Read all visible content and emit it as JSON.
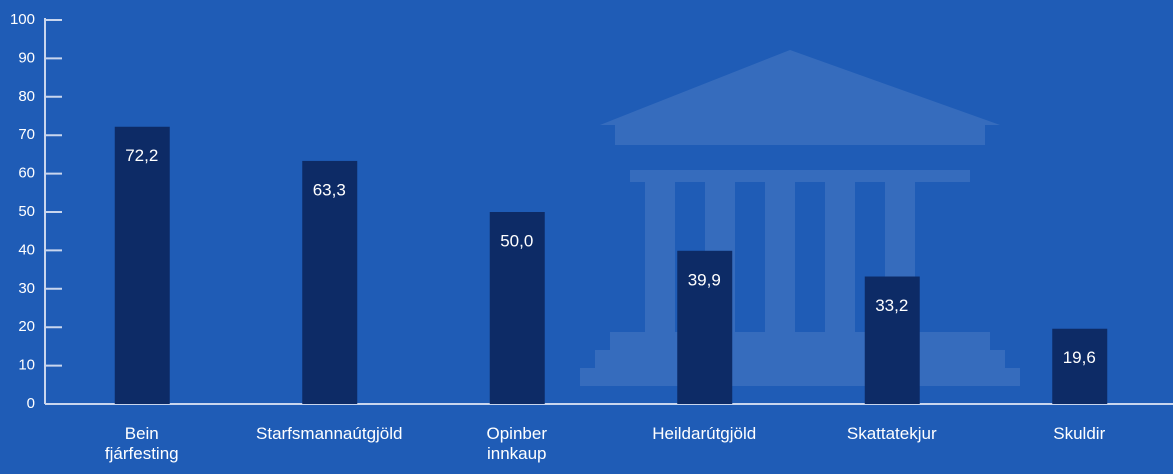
{
  "chart_data": {
    "type": "bar",
    "categories": [
      "Bein fjárfesting",
      "Starfsmannaútgjöld",
      "Opinber innkaup",
      "Heildarútgjöld",
      "Skattatekjur",
      "Skuldir"
    ],
    "values": [
      72.2,
      63.3,
      50.0,
      39.9,
      33.2,
      19.6
    ],
    "value_labels": [
      "72,2",
      "63,3",
      "50,0",
      "39,9",
      "33,2",
      "19,6"
    ],
    "color": "#0d2b66",
    "ylim": [
      0,
      100
    ],
    "yticks": [
      0,
      10,
      20,
      30,
      40,
      50,
      60,
      70,
      80,
      90,
      100
    ],
    "grid": false
  }
}
